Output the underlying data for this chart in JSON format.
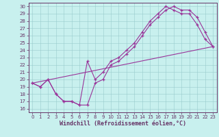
{
  "xlabel": "Windchill (Refroidissement éolien,°C)",
  "bg_color": "#c8f0ee",
  "grid_color": "#99cccc",
  "line_color": "#993399",
  "spine_color": "#663366",
  "xlim": [
    -0.5,
    23.5
  ],
  "ylim": [
    15.5,
    30.5
  ],
  "xticks": [
    0,
    1,
    2,
    3,
    4,
    5,
    6,
    7,
    8,
    9,
    10,
    11,
    12,
    13,
    14,
    15,
    16,
    17,
    18,
    19,
    20,
    21,
    22,
    23
  ],
  "yticks": [
    16,
    17,
    18,
    19,
    20,
    21,
    22,
    23,
    24,
    25,
    26,
    27,
    28,
    29,
    30
  ],
  "line1_x": [
    0,
    1,
    2,
    3,
    4,
    5,
    6,
    7,
    8,
    9,
    10,
    11,
    12,
    13,
    14,
    15,
    16,
    17,
    18,
    19,
    20,
    21,
    22,
    23
  ],
  "line1_y": [
    19.5,
    19.0,
    20.0,
    18.0,
    17.0,
    17.0,
    16.5,
    16.5,
    19.5,
    20.0,
    22.0,
    22.5,
    23.5,
    24.5,
    26.0,
    27.5,
    28.5,
    29.5,
    30.0,
    29.5,
    29.5,
    28.5,
    26.5,
    24.5
  ],
  "line2_x": [
    0,
    1,
    2,
    3,
    4,
    5,
    6,
    7,
    8,
    9,
    10,
    11,
    12,
    13,
    14,
    15,
    16,
    17,
    18,
    19,
    20,
    21,
    22,
    23
  ],
  "line2_y": [
    19.5,
    19.0,
    20.0,
    18.0,
    17.0,
    17.0,
    16.5,
    22.5,
    20.0,
    21.0,
    22.5,
    23.0,
    24.0,
    25.0,
    26.5,
    28.0,
    29.0,
    30.0,
    29.5,
    29.0,
    29.0,
    27.5,
    25.5,
    24.5
  ],
  "line3_x": [
    0,
    23
  ],
  "line3_y": [
    19.5,
    24.5
  ],
  "tick_fontsize": 5,
  "xlabel_fontsize": 6,
  "marker_size": 3,
  "linewidth": 0.8
}
